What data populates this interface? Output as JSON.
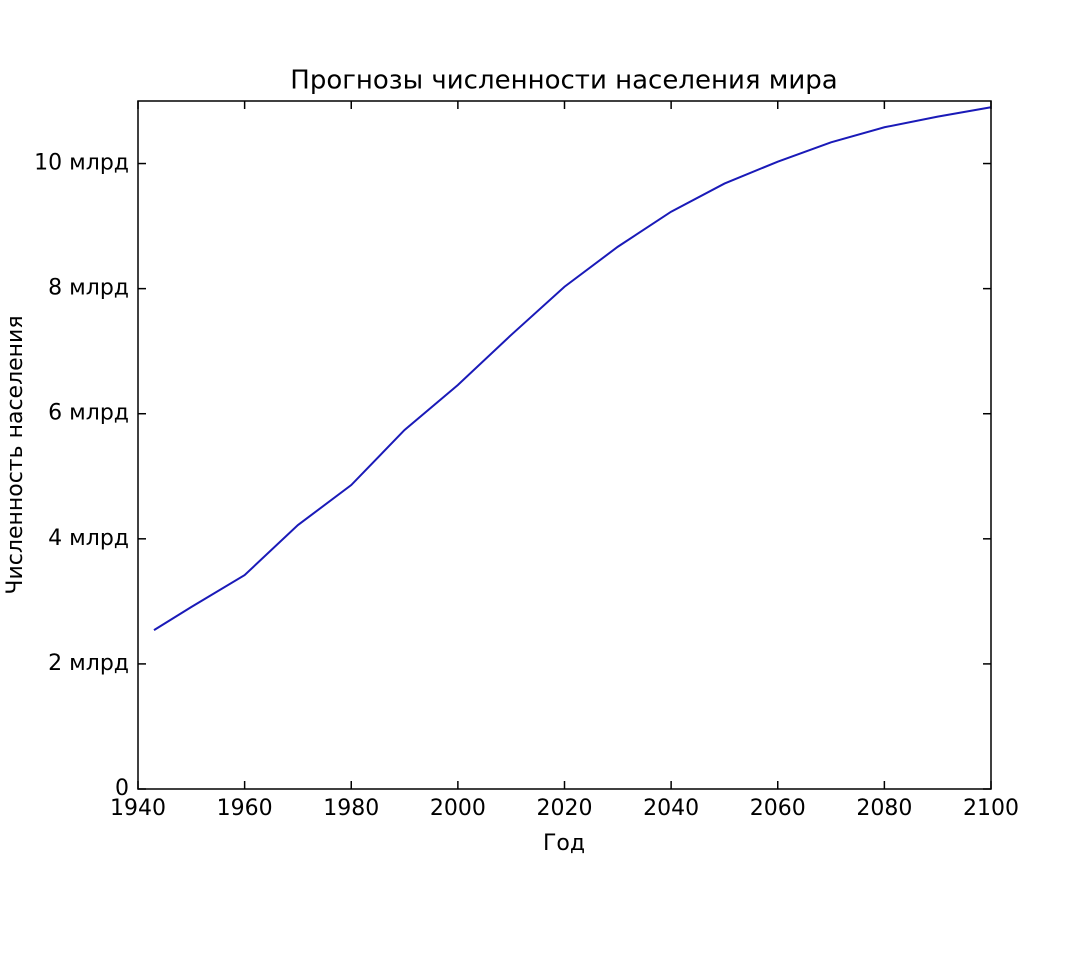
{
  "chart_data": {
    "type": "line",
    "title": "Прогнозы численности населения мира",
    "x_label": "Год",
    "y_label": "Численность населения",
    "x": [
      1943,
      1950,
      1960,
      1970,
      1980,
      1990,
      2000,
      2010,
      2020,
      2030,
      2040,
      2050,
      2060,
      2070,
      2080,
      2090,
      2100
    ],
    "series": [
      {
        "name": "Численность населения",
        "color": "#1a1ab8",
        "values": [
          2.54,
          2.91,
          3.42,
          4.22,
          4.86,
          5.74,
          6.46,
          7.26,
          8.03,
          8.67,
          9.23,
          9.68,
          10.03,
          10.34,
          10.58,
          10.75,
          10.9
        ]
      }
    ],
    "xlim": [
      1940,
      2100
    ],
    "xticks": [
      1940,
      1960,
      1980,
      2000,
      2020,
      2040,
      2060,
      2080,
      2100
    ],
    "ylim": [
      0,
      11
    ],
    "yticks": [
      0,
      {
        "value": 2,
        "label": "2 млрд"
      },
      {
        "value": 4,
        "label": "4 млрд"
      },
      {
        "value": 6,
        "label": "6 млрд"
      },
      {
        "value": 8,
        "label": "8 млрд"
      },
      {
        "value": 10,
        "label": "10 млрд"
      }
    ],
    "grid": false
  }
}
